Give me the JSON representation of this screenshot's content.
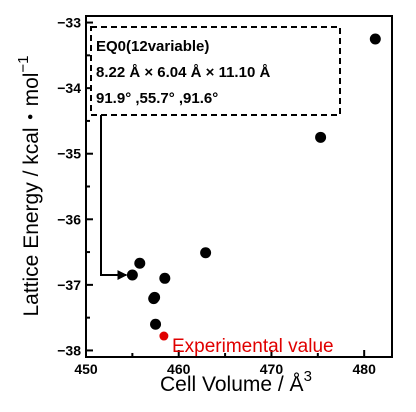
{
  "chart_data": {
    "type": "scatter",
    "title": "",
    "xlabel": "Cell Volume / Å",
    "xlabel_sup": "3",
    "ylabel": "Lattice Energy / kcal・mol",
    "ylabel_sup": "−1",
    "xlim": [
      450,
      483
    ],
    "ylim": [
      -38.1,
      -32.9
    ],
    "xticks": [
      450,
      460,
      470,
      480
    ],
    "xtick_labels": [
      "450",
      "460",
      "470",
      "480"
    ],
    "yticks": [
      -38,
      -37,
      -36,
      -35,
      -34,
      -33
    ],
    "ytick_labels": [
      "−38",
      "−37",
      "−36",
      "−35",
      "−34",
      "−33"
    ],
    "grid": false,
    "series": [
      {
        "color": "#000000",
        "points": [
          {
            "x": 455.0,
            "y": -36.85
          },
          {
            "x": 455.8,
            "y": -36.67
          },
          {
            "x": 457.4,
            "y": -37.19
          },
          {
            "x": 457.3,
            "y": -37.21
          },
          {
            "x": 458.5,
            "y": -36.9
          },
          {
            "x": 457.5,
            "y": -37.6
          },
          {
            "x": 462.9,
            "y": -36.51
          },
          {
            "x": 475.3,
            "y": -34.75
          },
          {
            "x": 481.2,
            "y": -33.25
          }
        ]
      },
      {
        "name": "Experimental value",
        "color": "#e00000",
        "points": [
          {
            "x": 458.4,
            "y": -37.78
          }
        ]
      }
    ],
    "annotation": {
      "lines": [
        "EQ0(12variable)",
        "8.22 Å × 6.04 Å × 11.10 Å",
        "91.9° ,55.7° ,91.6°"
      ],
      "arrow_target": {
        "x": 455.0,
        "y": -36.85
      }
    }
  }
}
